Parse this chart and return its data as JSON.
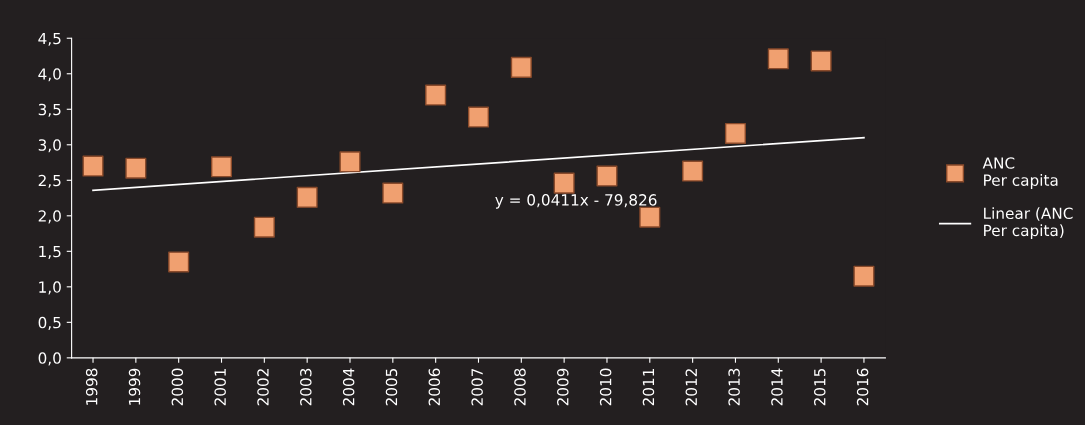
{
  "chart_data": {
    "type": "scatter",
    "categories": [
      "1998",
      "1999",
      "2000",
      "2001",
      "2002",
      "2003",
      "2004",
      "2005",
      "2006",
      "2007",
      "2008",
      "2009",
      "2010",
      "2011",
      "2012",
      "2013",
      "2014",
      "2015",
      "2016"
    ],
    "series": [
      {
        "name": "ANC\nPer capita",
        "color": "#f0a070",
        "marker": "square",
        "values": [
          2.7,
          2.67,
          1.35,
          2.69,
          1.84,
          2.26,
          2.76,
          2.32,
          3.7,
          3.39,
          4.09,
          2.46,
          2.56,
          1.98,
          2.63,
          3.16,
          4.21,
          4.18,
          1.15
        ]
      },
      {
        "name": "Linear (ANC\nPer capita)",
        "type": "line",
        "color": "#ffffff",
        "values": [
          2.36,
          null,
          null,
          null,
          null,
          null,
          null,
          null,
          null,
          null,
          null,
          null,
          null,
          null,
          null,
          null,
          null,
          null,
          3.1
        ]
      }
    ],
    "ylim": [
      0,
      4.5
    ],
    "yticks": [
      {
        "value": 0,
        "label": "0,0"
      },
      {
        "value": 0.5,
        "label": "0,5"
      },
      {
        "value": 1,
        "label": "1,0"
      },
      {
        "value": 1.5,
        "label": "1,5"
      },
      {
        "value": 2,
        "label": "2,0"
      },
      {
        "value": 2.5,
        "label": "2,5"
      },
      {
        "value": 3,
        "label": "3,0"
      },
      {
        "value": 3.5,
        "label": "3,5"
      },
      {
        "value": 4,
        "label": "4,0"
      },
      {
        "value": 4.5,
        "label": "4,5"
      }
    ],
    "annotations": [
      "y = 0,0411x - 79,826"
    ],
    "grid": false,
    "legend": "right"
  }
}
